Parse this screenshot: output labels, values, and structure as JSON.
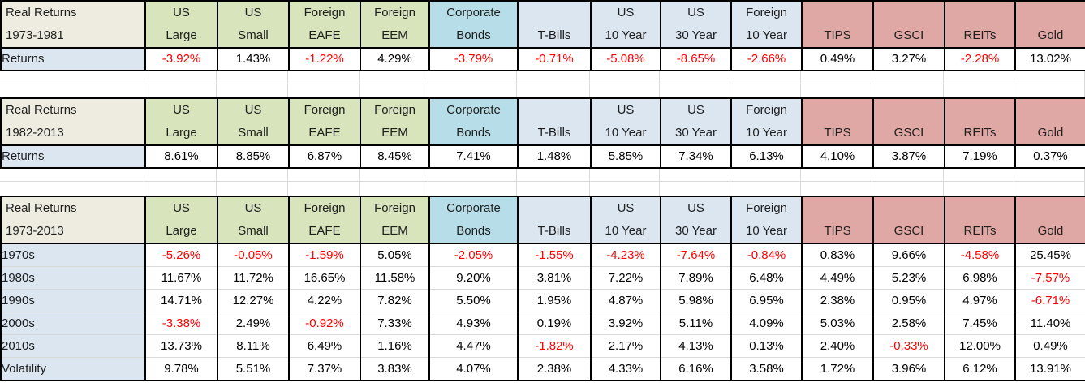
{
  "colors": {
    "header_beige": "#EEECE1",
    "equity_green": "#D7E4BC",
    "corp_bond_aqua": "#B7DEE8",
    "bond_blue": "#DCE6F1",
    "alt_rose": "#E0A8A4",
    "label_blue": "#DCE6F1",
    "negative_red": "#FF0000",
    "gridline_gray": "#D9D9D9",
    "border_black": "#000000"
  },
  "chart_data": {
    "type": "table",
    "columns": [
      {
        "line1": "US",
        "line2": "Large",
        "color": "equity_green"
      },
      {
        "line1": "US",
        "line2": "Small",
        "color": "equity_green"
      },
      {
        "line1": "Foreign",
        "line2": "EAFE",
        "color": "equity_green"
      },
      {
        "line1": "Foreign",
        "line2": "EEM",
        "color": "equity_green"
      },
      {
        "line1": "Corporate",
        "line2": "Bonds",
        "color": "corp_bond_aqua"
      },
      {
        "line1": "",
        "line2": "T-Bills",
        "color": "bond_blue"
      },
      {
        "line1": "US",
        "line2": "10 Year",
        "color": "bond_blue"
      },
      {
        "line1": "US",
        "line2": "30 Year",
        "color": "bond_blue"
      },
      {
        "line1": "Foreign",
        "line2": "10 Year",
        "color": "bond_blue"
      },
      {
        "line1": "",
        "line2": "TIPS",
        "color": "alt_rose"
      },
      {
        "line1": "",
        "line2": "GSCI",
        "color": "alt_rose"
      },
      {
        "line1": "",
        "line2": "REITs",
        "color": "alt_rose"
      },
      {
        "line1": "",
        "line2": "Gold",
        "color": "alt_rose"
      }
    ],
    "tables": [
      {
        "title_line1": "Real Returns",
        "title_line2": "1973-1981",
        "rows": [
          {
            "label": "Returns",
            "values": [
              "-3.92%",
              "1.43%",
              "-1.22%",
              "4.29%",
              "-3.79%",
              "-0.71%",
              "-5.08%",
              "-8.65%",
              "-2.66%",
              "0.49%",
              "3.27%",
              "-2.28%",
              "13.02%"
            ]
          }
        ]
      },
      {
        "title_line1": "Real Returns",
        "title_line2": "1982-2013",
        "rows": [
          {
            "label": "Returns",
            "values": [
              "8.61%",
              "8.85%",
              "6.87%",
              "8.45%",
              "7.41%",
              "1.48%",
              "5.85%",
              "7.34%",
              "6.13%",
              "4.10%",
              "3.87%",
              "7.19%",
              "0.37%"
            ]
          }
        ]
      },
      {
        "title_line1": "Real Returns",
        "title_line2": "1973-2013",
        "rows": [
          {
            "label": "1970s",
            "values": [
              "-5.26%",
              "-0.05%",
              "-1.59%",
              "5.05%",
              "-2.05%",
              "-1.55%",
              "-4.23%",
              "-7.64%",
              "-0.84%",
              "0.83%",
              "9.66%",
              "-4.58%",
              "25.45%"
            ]
          },
          {
            "label": "1980s",
            "values": [
              "11.67%",
              "11.72%",
              "16.65%",
              "11.58%",
              "9.20%",
              "3.81%",
              "7.22%",
              "7.89%",
              "6.48%",
              "4.49%",
              "5.23%",
              "6.98%",
              "-7.57%"
            ]
          },
          {
            "label": "1990s",
            "values": [
              "14.71%",
              "12.27%",
              "4.22%",
              "7.82%",
              "5.50%",
              "1.95%",
              "4.87%",
              "5.98%",
              "6.95%",
              "2.38%",
              "0.95%",
              "4.97%",
              "-6.71%"
            ]
          },
          {
            "label": "2000s",
            "values": [
              "-3.38%",
              "2.49%",
              "-0.92%",
              "7.33%",
              "4.93%",
              "0.19%",
              "3.92%",
              "5.11%",
              "4.09%",
              "5.03%",
              "2.58%",
              "7.45%",
              "11.40%"
            ]
          },
          {
            "label": "2010s",
            "values": [
              "13.73%",
              "8.11%",
              "6.49%",
              "1.16%",
              "4.47%",
              "-1.82%",
              "2.17%",
              "4.13%",
              "0.13%",
              "2.40%",
              "-0.33%",
              "12.00%",
              "0.49%"
            ]
          },
          {
            "label": "Volatility",
            "values": [
              "9.78%",
              "5.51%",
              "7.37%",
              "3.83%",
              "4.07%",
              "2.38%",
              "4.33%",
              "6.16%",
              "3.58%",
              "1.72%",
              "3.96%",
              "6.12%",
              "13.91%"
            ]
          }
        ]
      }
    ]
  }
}
